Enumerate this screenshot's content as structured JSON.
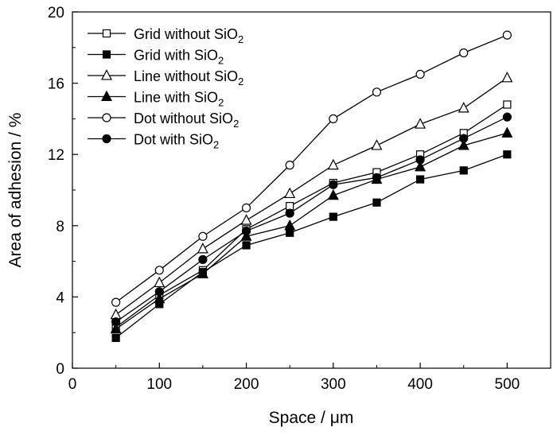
{
  "chart_data": {
    "type": "line",
    "xlabel": "Space / μm",
    "ylabel": "Area of adhesion / %",
    "xlim": [
      0,
      550
    ],
    "ylim": [
      0,
      20
    ],
    "x_ticks": [
      0,
      100,
      200,
      300,
      400,
      500
    ],
    "y_ticks": [
      0,
      4,
      8,
      12,
      16,
      20
    ],
    "grid": false,
    "legend_position": "top-left",
    "colors": {
      "line": "#000000",
      "background": "#ffffff"
    },
    "x": [
      50,
      100,
      150,
      200,
      250,
      300,
      350,
      400,
      450,
      500
    ],
    "series": [
      {
        "name": "Grid without SiO",
        "subscript": "2",
        "marker": "square-open",
        "values": [
          2.3,
          4.1,
          5.5,
          7.8,
          9.1,
          10.4,
          11.0,
          12.0,
          13.2,
          14.8
        ]
      },
      {
        "name": "Grid with SiO",
        "subscript": "2",
        "marker": "square-filled",
        "values": [
          1.7,
          3.6,
          5.4,
          6.9,
          7.6,
          8.5,
          9.3,
          10.6,
          11.1,
          12.0
        ]
      },
      {
        "name": "Line without SiO",
        "subscript": "2",
        "marker": "triangle-open",
        "values": [
          3.0,
          4.8,
          6.7,
          8.3,
          9.8,
          11.4,
          12.5,
          13.7,
          14.6,
          16.3
        ]
      },
      {
        "name": "Line with SiO",
        "subscript": "2",
        "marker": "triangle-filled",
        "values": [
          2.2,
          3.9,
          5.3,
          7.4,
          8.0,
          9.7,
          10.6,
          11.3,
          12.5,
          13.2
        ]
      },
      {
        "name": "Dot without SiO",
        "subscript": "2",
        "marker": "circle-open",
        "values": [
          3.7,
          5.5,
          7.4,
          9.0,
          11.4,
          14.0,
          15.5,
          16.5,
          17.7,
          18.7
        ]
      },
      {
        "name": "Dot with SiO",
        "subscript": "2",
        "marker": "circle-filled",
        "values": [
          2.6,
          4.3,
          6.1,
          7.7,
          8.7,
          10.3,
          10.7,
          11.7,
          12.9,
          14.1
        ]
      }
    ]
  }
}
